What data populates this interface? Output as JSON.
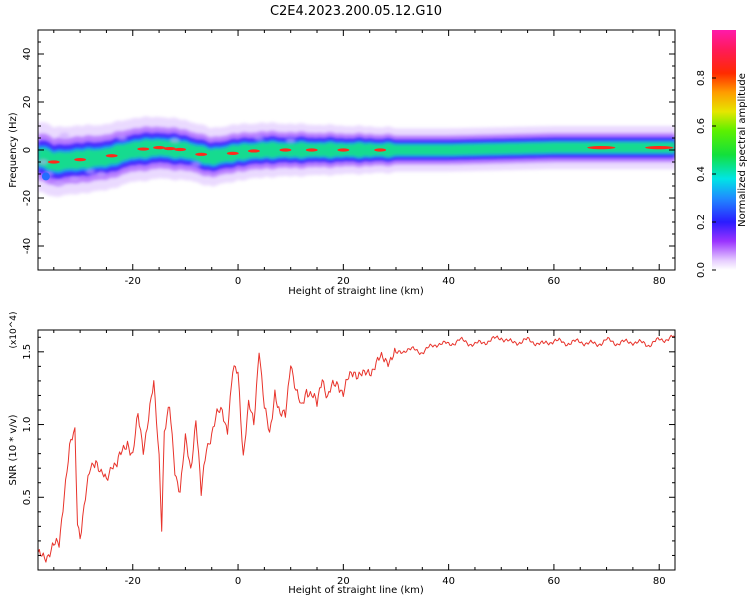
{
  "figure": {
    "title": "C2E4.2023.200.05.12.G10"
  },
  "chart_data": [
    {
      "type": "heatmap",
      "xlabel": "Height of straight line (km)",
      "ylabel": "Frequency (Hz)",
      "xlim": [
        -38,
        83
      ],
      "ylim": [
        -50,
        50
      ],
      "xticks": [
        -20,
        0,
        20,
        40,
        60,
        80
      ],
      "yticks": [
        -40,
        -20,
        0,
        20,
        40
      ],
      "grid": false,
      "colorbar": {
        "label": "Normalized spectral amplitude",
        "range": [
          0,
          1
        ],
        "ticks": [
          0.0,
          0.2,
          0.4,
          0.6,
          0.8
        ],
        "colormap": "rainbow (purple-blue-cyan-green-yellow-red-magenta)"
      },
      "ridge": {
        "description": "spectral energy concentrated near 0 Hz, wider and noisier at low heights, narrowing and stabilising above ~30 km",
        "centre_freq_hz": {
          "x": [
            -37,
            -35,
            -30,
            -25,
            -20,
            -15,
            -10,
            -5,
            0,
            5,
            10,
            20,
            30,
            40,
            60,
            83
          ],
          "y": [
            -3,
            -5,
            -4,
            -3,
            0,
            1,
            0,
            -3,
            -1,
            0,
            0,
            0,
            0,
            0,
            1,
            1
          ]
        },
        "peak_x_km": [
          -35,
          -30,
          -24,
          -18,
          -15,
          -13,
          -11,
          -7,
          -1,
          3,
          9,
          14,
          20,
          27,
          69,
          80
        ]
      }
    },
    {
      "type": "line",
      "xlabel": "Height of straight line (km)",
      "ylabel": "SNR (10 * v/v)",
      "y_multiplier": "(x10^4)",
      "xlim": [
        -38,
        83
      ],
      "ylim": [
        0,
        1.65
      ],
      "xticks": [
        -20,
        0,
        20,
        40,
        60,
        80
      ],
      "yticks": [
        0.5,
        1.0,
        1.5
      ],
      "grid": false,
      "series": [
        {
          "color": "#e8332b",
          "x": [
            -38,
            -36,
            -34,
            -33,
            -32,
            -31,
            -30.5,
            -30,
            -29,
            -28,
            -27,
            -26,
            -25,
            -24,
            -23,
            -22,
            -21,
            -20,
            -19,
            -18,
            -17,
            -16,
            -15,
            -14.5,
            -14,
            -13,
            -12,
            -11,
            -10,
            -9,
            -8,
            -7,
            -6,
            -5,
            -4,
            -3,
            -2,
            -1,
            0,
            1,
            2,
            3,
            4,
            5,
            6,
            7,
            8,
            9,
            10,
            11,
            12,
            13,
            14,
            15,
            16,
            17,
            18,
            19,
            20,
            22,
            24,
            26,
            28,
            30,
            32,
            35,
            38,
            40,
            42,
            45,
            48,
            50,
            52,
            55,
            58,
            60,
            62,
            65,
            68,
            70,
            72,
            75,
            78,
            80,
            83
          ],
          "y": [
            0.08,
            0.12,
            0.18,
            0.55,
            0.82,
            0.95,
            0.35,
            0.25,
            0.48,
            0.7,
            0.78,
            0.65,
            0.6,
            0.75,
            0.72,
            0.8,
            0.9,
            0.78,
            1.05,
            0.85,
            1.05,
            1.26,
            0.8,
            0.32,
            0.95,
            1.1,
            0.7,
            0.55,
            0.88,
            0.7,
            1.05,
            0.5,
            0.85,
            0.95,
            1.05,
            1.1,
            0.98,
            1.35,
            1.36,
            0.8,
            1.12,
            1.0,
            1.55,
            1.1,
            0.92,
            1.25,
            1.05,
            1.05,
            1.46,
            1.22,
            1.1,
            1.26,
            1.2,
            1.12,
            1.35,
            1.18,
            1.25,
            1.3,
            1.22,
            1.38,
            1.32,
            1.42,
            1.45,
            1.48,
            1.52,
            1.5,
            1.56,
            1.55,
            1.58,
            1.55,
            1.58,
            1.6,
            1.56,
            1.58,
            1.55,
            1.58,
            1.56,
            1.57,
            1.55,
            1.58,
            1.56,
            1.57,
            1.55,
            1.58,
            1.6
          ]
        }
      ]
    }
  ]
}
